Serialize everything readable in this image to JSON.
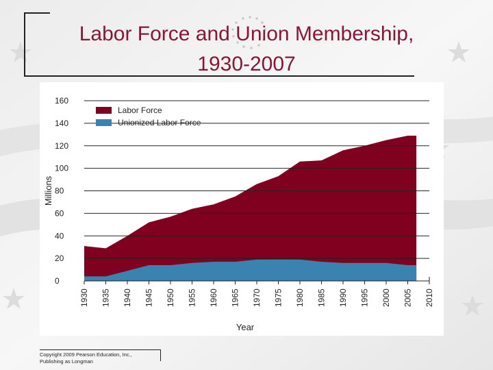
{
  "slide": {
    "title_line1": "Labor Force and Union Membership,",
    "title_line2": "1930-2007",
    "copyright_line1": "Copyright 2009 Pearson Education, Inc.,",
    "copyright_line2": "Publishing as Longman"
  },
  "colors": {
    "title": "#8a1538",
    "labor_force": "#800020",
    "union": "#3a82b0",
    "grid": "#222222"
  },
  "chart_data": {
    "type": "area",
    "xlabel": "Year",
    "ylabel": "Millions",
    "xlim": [
      1930,
      2010
    ],
    "ylim": [
      0,
      160
    ],
    "x_ticks": [
      1930,
      1935,
      1940,
      1945,
      1950,
      1955,
      1960,
      1965,
      1970,
      1975,
      1980,
      1985,
      1990,
      1995,
      2000,
      2005,
      2010
    ],
    "y_ticks": [
      0,
      20,
      40,
      60,
      80,
      100,
      120,
      140,
      160
    ],
    "grid": "horizontal",
    "legend_position": "top-left",
    "x": [
      1930,
      1935,
      1940,
      1945,
      1950,
      1955,
      1960,
      1965,
      1970,
      1975,
      1980,
      1985,
      1990,
      1995,
      2000,
      2005,
      2007
    ],
    "series": [
      {
        "name": "Labor Force",
        "color": "#800020",
        "values": [
          31,
          29,
          40,
          52,
          57,
          64,
          68,
          75,
          86,
          93,
          106,
          107,
          116,
          120,
          125,
          129,
          129
        ]
      },
      {
        "name": "Unionized Labor Force",
        "color": "#3a82b0",
        "values": [
          4,
          4,
          9,
          14,
          14,
          16,
          17,
          17,
          19,
          19,
          19,
          17,
          16,
          16,
          16,
          14,
          14
        ]
      }
    ]
  }
}
